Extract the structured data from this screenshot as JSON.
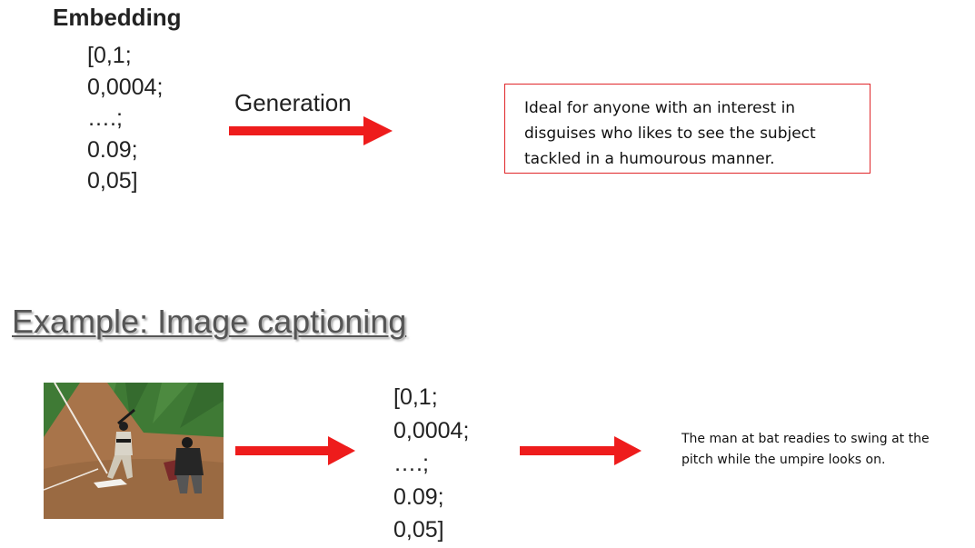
{
  "embedding_section": {
    "title": "Embedding",
    "vector": [
      "[0,1;",
      "0,0004;",
      "….;",
      "0.09;",
      "0,05]"
    ],
    "generation_label": "Generation",
    "generated_text": [
      "Ideal for anyone with an interest in",
      "disguises who likes to see the subject",
      "tackled in a humourous manner."
    ]
  },
  "captioning_section": {
    "heading": "Example: Image captioning",
    "vector": [
      "[0,1;",
      "0,0004;",
      "….;",
      "0.09;",
      "0,05]"
    ],
    "caption_text": [
      "The man at bat readies to swing at the",
      "pitch while the umpire looks on."
    ]
  },
  "colors": {
    "arrow": "#ee1c1c",
    "box_border": "#e0262a"
  },
  "icons": {
    "photo": "baseball-photo-icon"
  }
}
